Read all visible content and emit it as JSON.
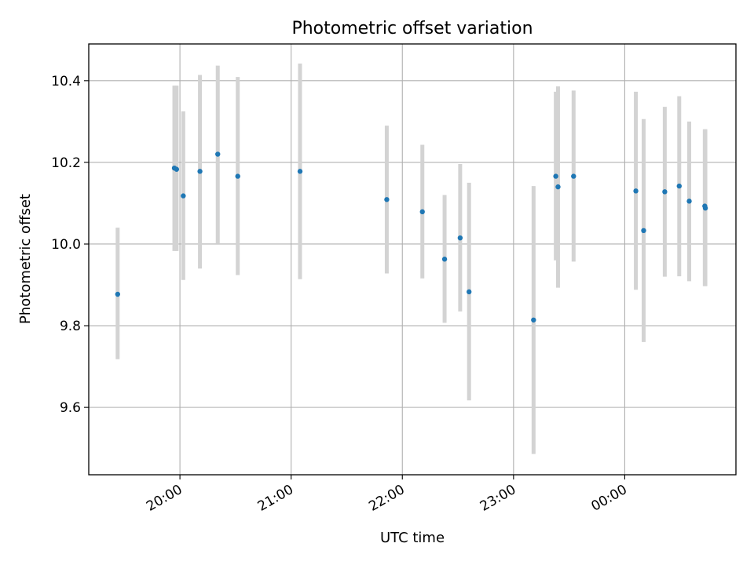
{
  "chart_data": {
    "type": "scatter",
    "title": "Photometric offset variation",
    "xlabel": "UTC time",
    "ylabel": "Photometric offset",
    "grid": true,
    "xlim_hours": [
      19.18,
      25.0
    ],
    "ylim": [
      9.435,
      10.49
    ],
    "x_ticks": [
      {
        "hour": 20,
        "label": "20:00"
      },
      {
        "hour": 21,
        "label": "21:00"
      },
      {
        "hour": 22,
        "label": "22:00"
      },
      {
        "hour": 23,
        "label": "23:00"
      },
      {
        "hour": 24,
        "label": "00:00"
      }
    ],
    "y_ticks": [
      {
        "value": 9.6,
        "label": "9.6"
      },
      {
        "value": 9.8,
        "label": "9.8"
      },
      {
        "value": 10.0,
        "label": "10.0"
      },
      {
        "value": 10.2,
        "label": "10.2"
      },
      {
        "value": 10.4,
        "label": "10.4"
      }
    ],
    "point_color": "#1f77b4",
    "errorbar_color": "#d3d3d3",
    "points": [
      {
        "hour": 19.44,
        "y": 9.877,
        "ylo": 9.718,
        "yhi": 10.04
      },
      {
        "hour": 19.95,
        "y": 10.186,
        "ylo": 9.983,
        "yhi": 10.388
      },
      {
        "hour": 19.97,
        "y": 10.183,
        "ylo": 9.983,
        "yhi": 10.388
      },
      {
        "hour": 20.03,
        "y": 10.118,
        "ylo": 9.912,
        "yhi": 10.325
      },
      {
        "hour": 20.18,
        "y": 10.178,
        "ylo": 9.94,
        "yhi": 10.414
      },
      {
        "hour": 20.34,
        "y": 10.22,
        "ylo": 10.002,
        "yhi": 10.437
      },
      {
        "hour": 20.52,
        "y": 10.166,
        "ylo": 9.924,
        "yhi": 10.409
      },
      {
        "hour": 21.08,
        "y": 10.178,
        "ylo": 9.914,
        "yhi": 10.442
      },
      {
        "hour": 21.86,
        "y": 10.109,
        "ylo": 9.928,
        "yhi": 10.29
      },
      {
        "hour": 22.18,
        "y": 10.079,
        "ylo": 9.916,
        "yhi": 10.243
      },
      {
        "hour": 22.38,
        "y": 9.963,
        "ylo": 9.807,
        "yhi": 10.12
      },
      {
        "hour": 22.52,
        "y": 10.015,
        "ylo": 9.835,
        "yhi": 10.196
      },
      {
        "hour": 22.6,
        "y": 9.883,
        "ylo": 9.617,
        "yhi": 10.15
      },
      {
        "hour": 23.18,
        "y": 9.814,
        "ylo": 9.486,
        "yhi": 10.142
      },
      {
        "hour": 23.38,
        "y": 10.166,
        "ylo": 9.96,
        "yhi": 10.373
      },
      {
        "hour": 23.4,
        "y": 10.14,
        "ylo": 9.893,
        "yhi": 10.386
      },
      {
        "hour": 23.54,
        "y": 10.166,
        "ylo": 9.957,
        "yhi": 10.376
      },
      {
        "hour": 24.1,
        "y": 10.13,
        "ylo": 9.888,
        "yhi": 10.373
      },
      {
        "hour": 24.17,
        "y": 10.033,
        "ylo": 9.76,
        "yhi": 10.306
      },
      {
        "hour": 24.36,
        "y": 10.128,
        "ylo": 9.92,
        "yhi": 10.336
      },
      {
        "hour": 24.49,
        "y": 10.142,
        "ylo": 9.921,
        "yhi": 10.362
      },
      {
        "hour": 24.58,
        "y": 10.105,
        "ylo": 9.909,
        "yhi": 10.3
      },
      {
        "hour": 24.72,
        "y": 10.093,
        "ylo": 9.897,
        "yhi": 10.281
      },
      {
        "hour": 24.725,
        "y": 10.088,
        "ylo": 9.897,
        "yhi": 10.281
      }
    ]
  }
}
